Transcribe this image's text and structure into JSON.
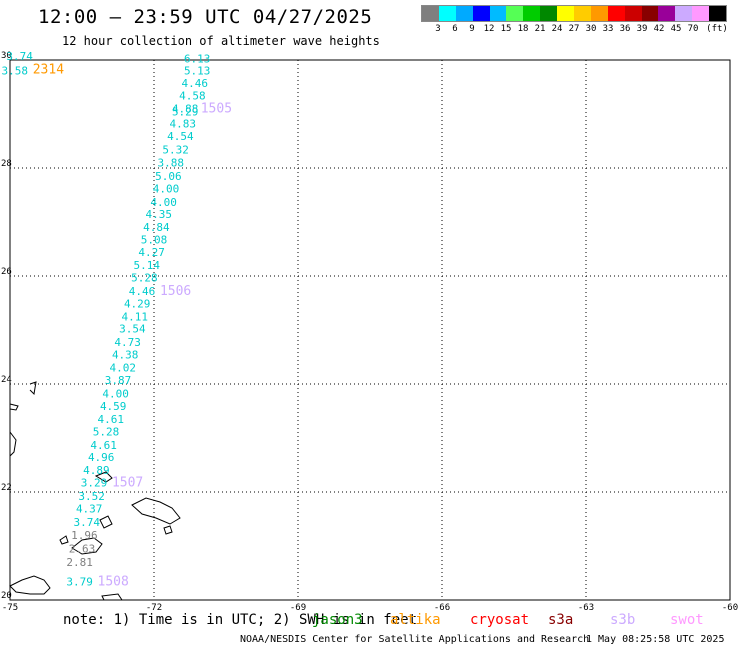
{
  "header": {
    "title": "12:00 — 23:59 UTC 04/27/2025",
    "subtitle": "12 hour collection of altimeter wave heights"
  },
  "legend": {
    "unit": "(ft)",
    "colors": [
      "#7f7f7f",
      "#00ffff",
      "#00aaff",
      "#0000ff",
      "#00bbff",
      "#55ff55",
      "#00cc00",
      "#008800",
      "#ffff00",
      "#ffcc00",
      "#ff9900",
      "#ff0000",
      "#cc0000",
      "#880000",
      "#990099",
      "#ccaaff",
      "#ff99ff",
      "#000000"
    ],
    "ticks": [
      "3",
      "6",
      "9",
      "12",
      "15",
      "18",
      "21",
      "24",
      "27",
      "30",
      "33",
      "36",
      "39",
      "42",
      "45",
      "70"
    ]
  },
  "map": {
    "lat_labels": [
      "30",
      "28",
      "26",
      "24",
      "22",
      "20"
    ],
    "lon_labels": [
      "-75",
      "-72",
      "-69",
      "-66",
      "-63",
      "-60"
    ],
    "track_values": [
      {
        "text": "6.13",
        "lon": -71.1,
        "lat": 29.95
      },
      {
        "text": "5.13",
        "lon": -71.1,
        "lat": 29.73
      },
      {
        "text": "4.46",
        "lon": -71.15,
        "lat": 29.5
      },
      {
        "text": "4.58",
        "lon": -71.2,
        "lat": 29.27
      },
      {
        "text": "4.88",
        "lon": -71.35,
        "lat": 29.03
      },
      {
        "text": "5.29",
        "lon": -71.35,
        "lat": 28.97
      },
      {
        "text": "4.83",
        "lon": -71.4,
        "lat": 28.75
      },
      {
        "text": "4.54",
        "lon": -71.45,
        "lat": 28.52
      },
      {
        "text": "5.32",
        "lon": -71.55,
        "lat": 28.27
      },
      {
        "text": "3.88",
        "lon": -71.65,
        "lat": 28.03
      },
      {
        "text": "5.06",
        "lon": -71.7,
        "lat": 27.78
      },
      {
        "text": "4.00",
        "lon": -71.75,
        "lat": 27.55
      },
      {
        "text": "4.00",
        "lon": -71.8,
        "lat": 27.3
      },
      {
        "text": "4.35",
        "lon": -71.9,
        "lat": 27.07
      },
      {
        "text": "4.84",
        "lon": -71.95,
        "lat": 26.83
      },
      {
        "text": "5.08",
        "lon": -72.0,
        "lat": 26.6
      },
      {
        "text": "4.27",
        "lon": -72.05,
        "lat": 26.37
      },
      {
        "text": "5.14",
        "lon": -72.15,
        "lat": 26.13
      },
      {
        "text": "5.28",
        "lon": -72.2,
        "lat": 25.9
      },
      {
        "text": "4.46",
        "lon": -72.25,
        "lat": 25.65
      },
      {
        "text": "4.29",
        "lon": -72.35,
        "lat": 25.42
      },
      {
        "text": "4.11",
        "lon": -72.4,
        "lat": 25.18
      },
      {
        "text": "3.54",
        "lon": -72.45,
        "lat": 24.95
      },
      {
        "text": "4.73",
        "lon": -72.55,
        "lat": 24.7
      },
      {
        "text": "4.38",
        "lon": -72.6,
        "lat": 24.47
      },
      {
        "text": "4.02",
        "lon": -72.65,
        "lat": 24.23
      },
      {
        "text": "3.87",
        "lon": -72.75,
        "lat": 24.0
      },
      {
        "text": "4.00",
        "lon": -72.8,
        "lat": 23.75
      },
      {
        "text": "4.59",
        "lon": -72.85,
        "lat": 23.52
      },
      {
        "text": "4.61",
        "lon": -72.9,
        "lat": 23.28
      },
      {
        "text": "5.28",
        "lon": -73.0,
        "lat": 23.05
      },
      {
        "text": "4.61",
        "lon": -73.05,
        "lat": 22.8
      },
      {
        "text": "4.96",
        "lon": -73.1,
        "lat": 22.57
      },
      {
        "text": "4.89",
        "lon": -73.2,
        "lat": 22.33
      },
      {
        "text": "3.29",
        "lon": -73.25,
        "lat": 22.1
      },
      {
        "text": "3.52",
        "lon": -73.3,
        "lat": 21.85
      },
      {
        "text": "4.37",
        "lon": -73.35,
        "lat": 21.62
      },
      {
        "text": "3.74",
        "lon": -73.4,
        "lat": 21.37
      },
      {
        "text": "3.74",
        "lon": -74.8,
        "lat": 30.0
      },
      {
        "text": "3.58",
        "lon": -74.9,
        "lat": 29.73
      },
      {
        "text": "3.79",
        "lon": -73.55,
        "lat": 20.27
      }
    ],
    "gray_values": [
      {
        "text": "1.96",
        "lon": -73.45,
        "lat": 21.13
      },
      {
        "text": "2.63",
        "lon": -73.5,
        "lat": 20.88
      },
      {
        "text": "2.81",
        "lon": -73.55,
        "lat": 20.63
      }
    ],
    "pass_labels": [
      {
        "text": "2314",
        "lon": -74.2,
        "lat": 29.75,
        "color": "#ff9900"
      },
      {
        "text": "1505",
        "lon": -70.7,
        "lat": 29.03,
        "color": "#ccaaff"
      },
      {
        "text": "1506",
        "lon": -71.55,
        "lat": 25.65,
        "color": "#ccaaff"
      },
      {
        "text": "1507",
        "lon": -72.55,
        "lat": 22.1,
        "color": "#ccaaff"
      },
      {
        "text": "1508",
        "lon": -72.85,
        "lat": 20.27,
        "color": "#ccaaff"
      }
    ]
  },
  "footer": {
    "note": "note: 1) Time is in UTC; 2) SWH is in feet",
    "satellites": [
      {
        "name": "jason3",
        "color": "#008800"
      },
      {
        "name": "altika",
        "color": "#ff9900"
      },
      {
        "name": "cryosat",
        "color": "#ff0000"
      },
      {
        "name": "s3a",
        "color": "#880000"
      },
      {
        "name": "s3b",
        "color": "#ccaaff"
      },
      {
        "name": "swot",
        "color": "#ff99ff"
      }
    ],
    "credit": "NOAA/NESDIS Center for Satellite Applications and Research",
    "date": "1 May 08:25:58 UTC 2025"
  }
}
